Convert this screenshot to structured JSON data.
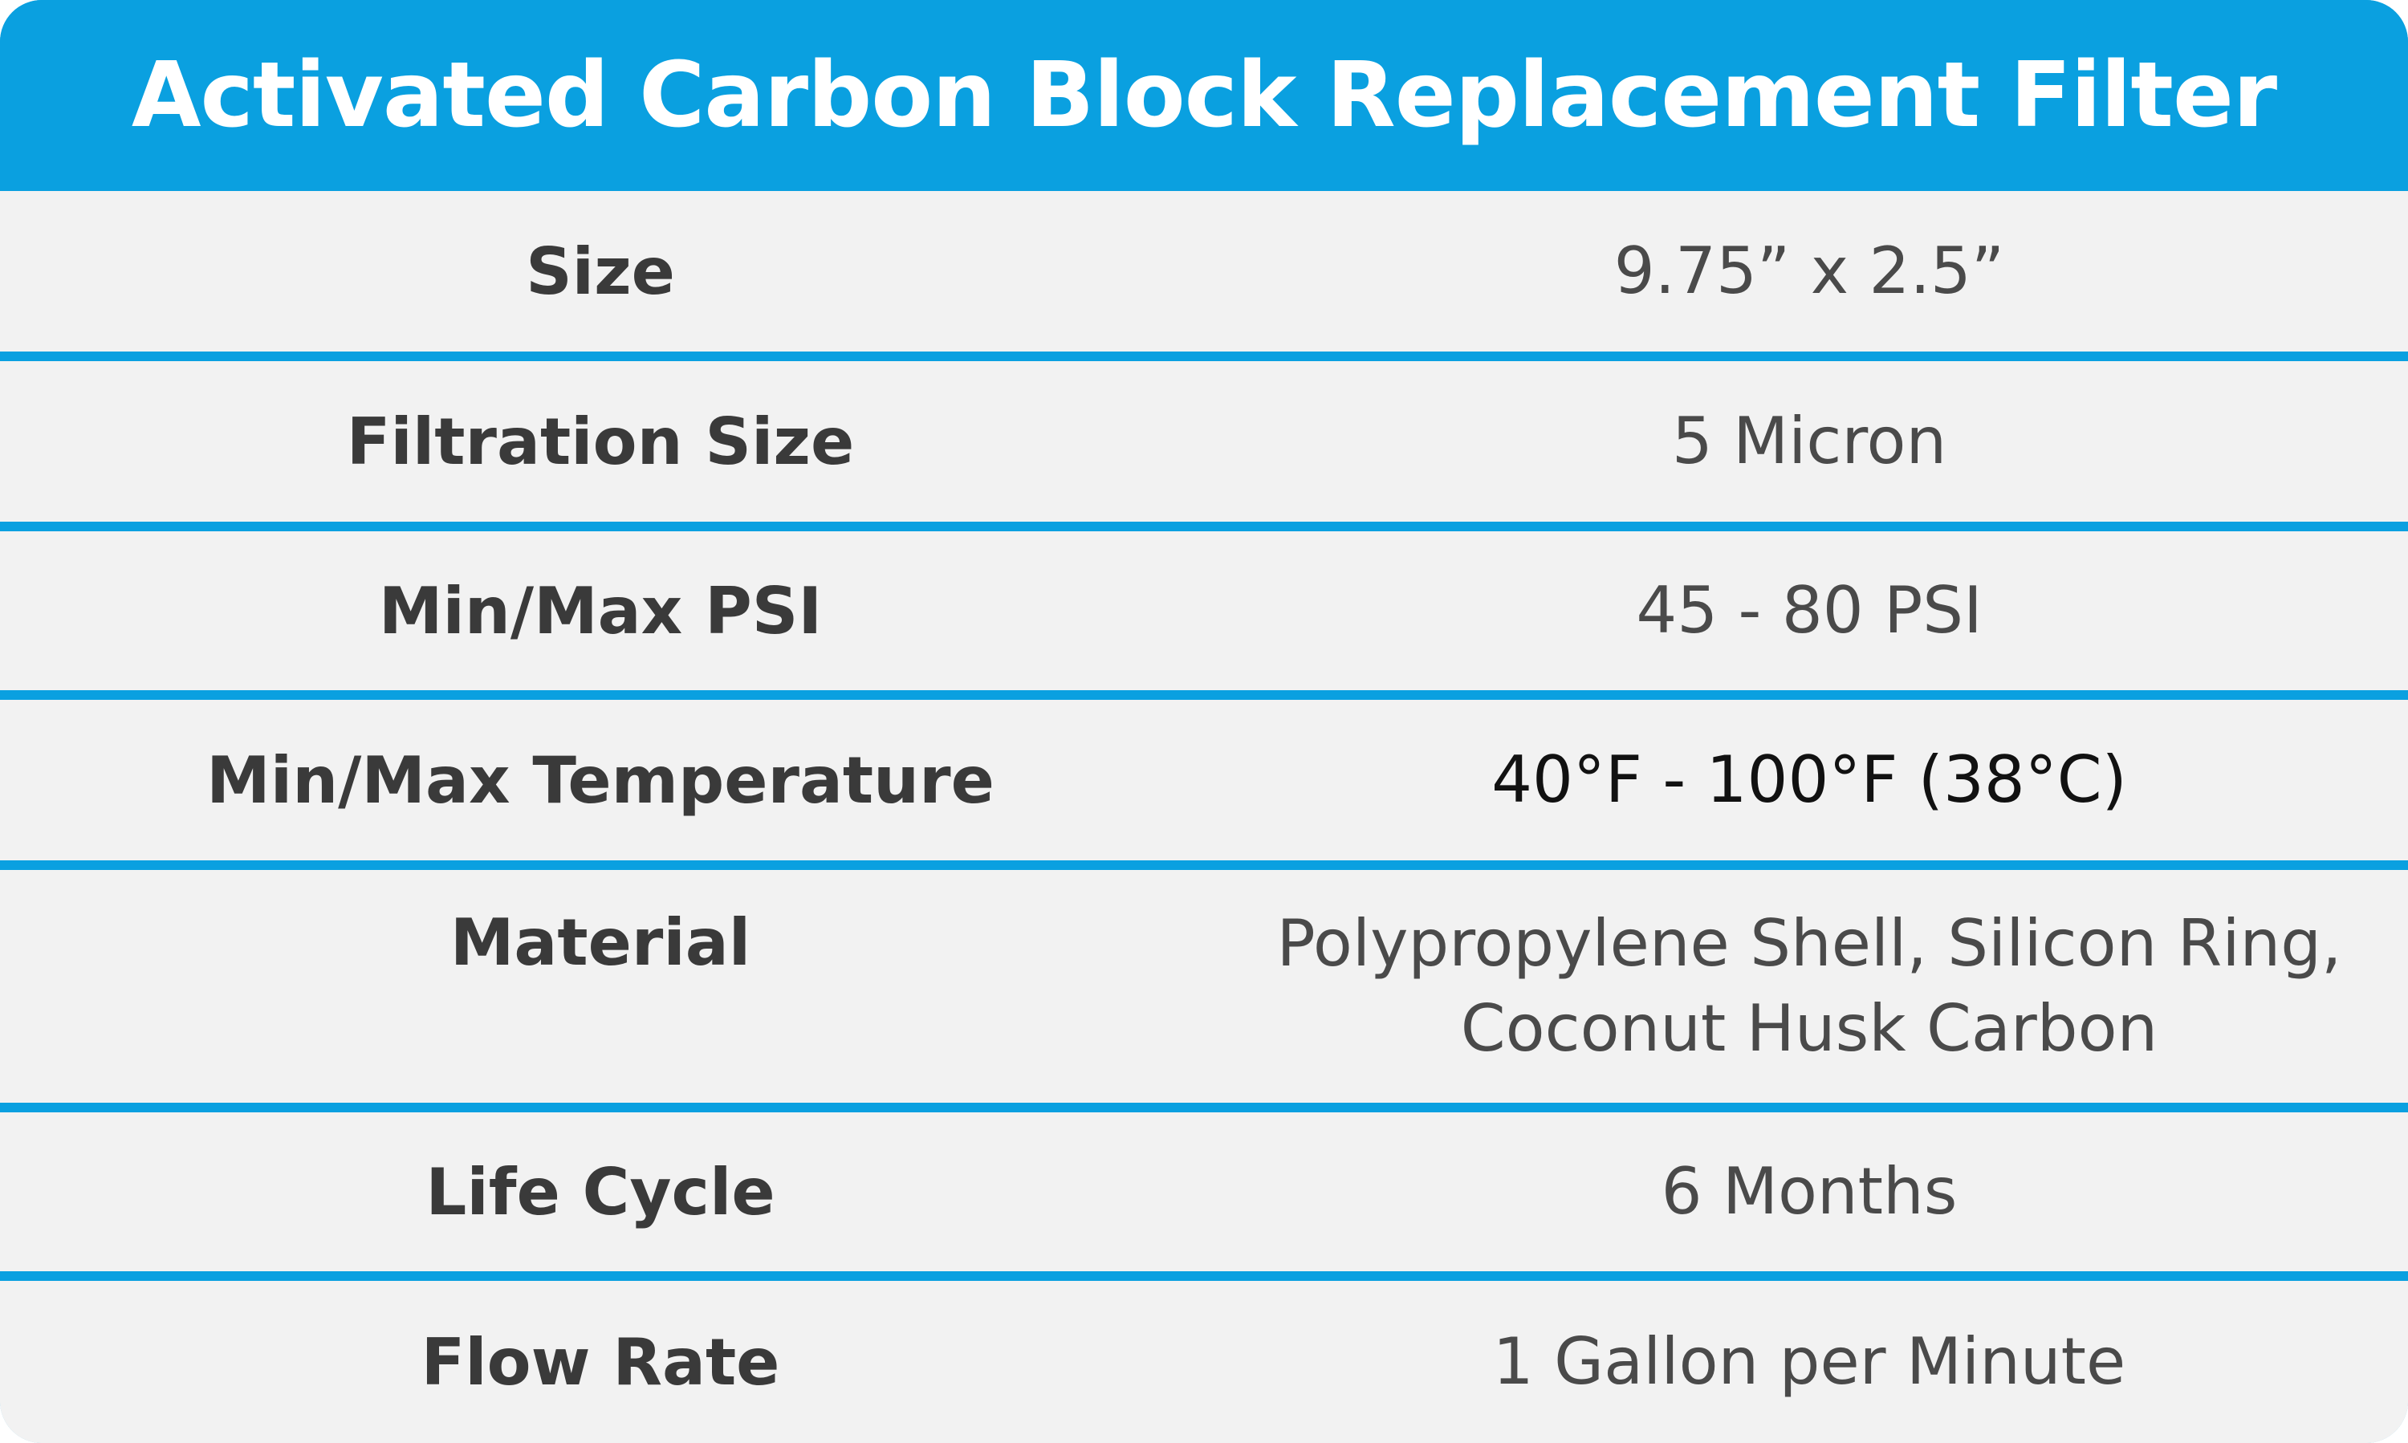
{
  "title": "Activated Carbon Block Replacement Filter",
  "colors": {
    "accent": "#0aa0e0",
    "row_background": "#f2f2f2",
    "label_text": "#3a3a3a",
    "value_text": "#4a4a4a"
  },
  "specs": [
    {
      "label": "Size",
      "value": "9.75” x 2.5”"
    },
    {
      "label": "Filtration Size",
      "value": "5 Micron"
    },
    {
      "label": "Min/Max PSI",
      "value": "45 - 80 PSI"
    },
    {
      "label": "Min/Max Temperature",
      "value": "40°F - 100°F (38°C)"
    },
    {
      "label": "Material",
      "value_line1": "Polypropylene Shell, Silicon Ring,",
      "value_line2": "Coconut Husk Carbon"
    },
    {
      "label": "Life Cycle",
      "value": "6 Months"
    },
    {
      "label": "Flow Rate",
      "value": "1 Gallon per Minute"
    }
  ]
}
